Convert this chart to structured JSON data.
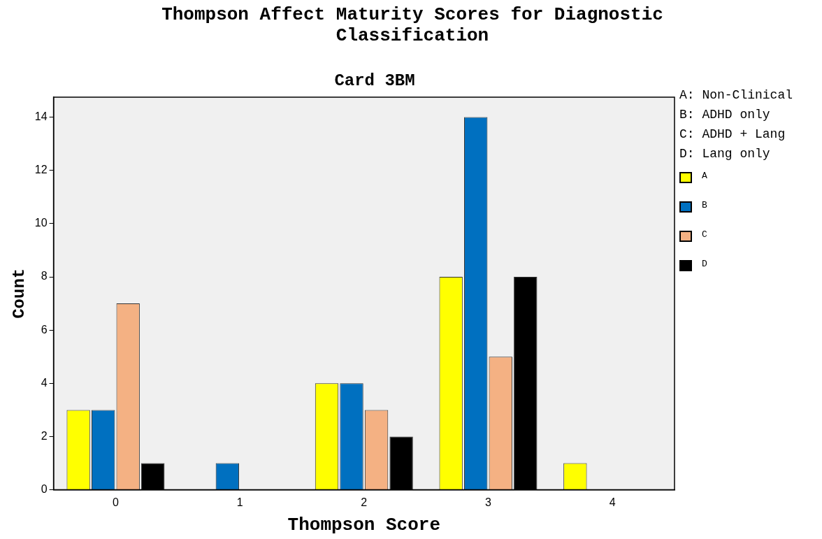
{
  "chart_data": {
    "type": "bar",
    "title": "Thompson Affect Maturity Scores for Diagnostic Classification",
    "subtitle": "Card 3BM",
    "xlabel": "Thompson Score",
    "ylabel": "Count",
    "categories": [
      "0",
      "1",
      "2",
      "3",
      "4"
    ],
    "series": [
      {
        "name": "A",
        "color": "#ffff00",
        "values": [
          3,
          0,
          4,
          8,
          1
        ]
      },
      {
        "name": "B",
        "color": "#0070c0",
        "values": [
          3,
          1,
          4,
          14,
          0
        ]
      },
      {
        "name": "C",
        "color": "#f4b183",
        "values": [
          7,
          0,
          3,
          5,
          0
        ]
      },
      {
        "name": "D",
        "color": "#000000",
        "values": [
          1,
          0,
          2,
          8,
          0
        ]
      }
    ],
    "ylim": [
      0,
      14.75
    ],
    "yticks": [
      0,
      2,
      4,
      6,
      8,
      10,
      12,
      14
    ],
    "grid": false,
    "legend": "right",
    "annotations": [
      "A: Non-Clinical",
      "B: ADHD only",
      "C: ADHD + Lang",
      "D: Lang only"
    ]
  }
}
